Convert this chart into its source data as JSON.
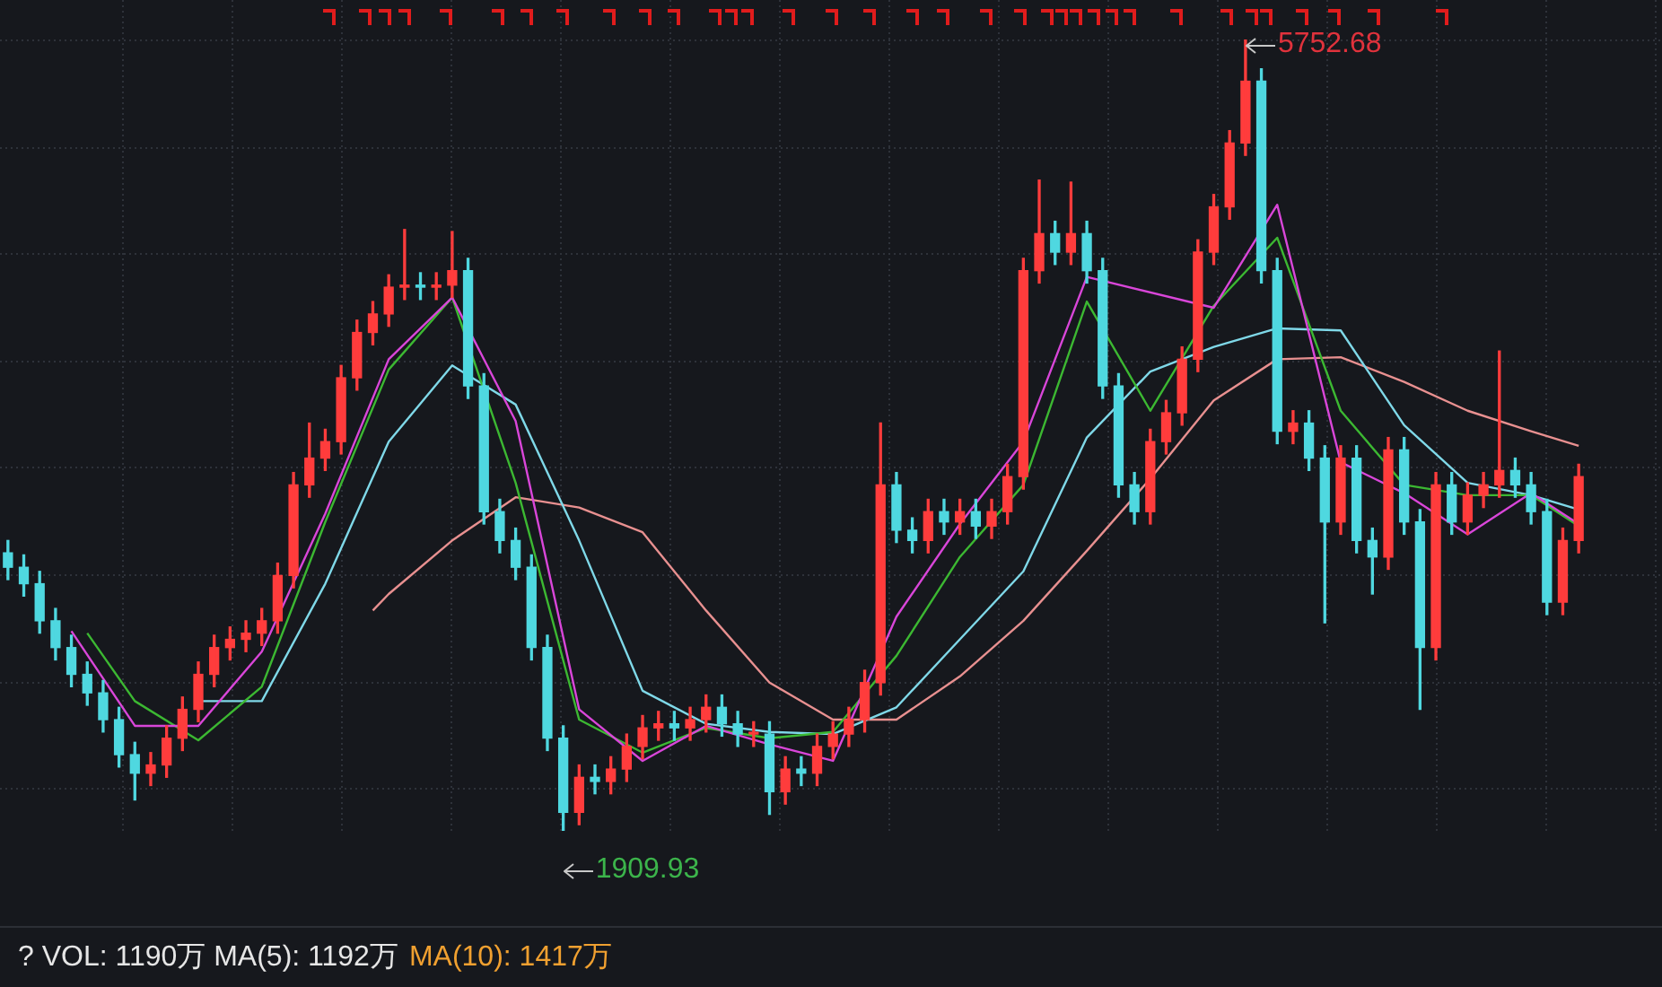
{
  "chart_data": {
    "type": "candlestick",
    "tick_labels": false,
    "grid": true,
    "legend": false,
    "categories": [
      null,
      null,
      null,
      null,
      null,
      null,
      null,
      null,
      null,
      null,
      null,
      null,
      null,
      null,
      null,
      null,
      null,
      null,
      null,
      null,
      null,
      null,
      null,
      null,
      null,
      null,
      null,
      null,
      null,
      null,
      null,
      null,
      null,
      null,
      null,
      null,
      null,
      null,
      null,
      null,
      null,
      null,
      null,
      null,
      null,
      null,
      null,
      null,
      null,
      null,
      null,
      null,
      null,
      null,
      null,
      null,
      null,
      null,
      null,
      null,
      null,
      null,
      null,
      null,
      null,
      null,
      null,
      null,
      null,
      null,
      null,
      null,
      null,
      null,
      null,
      null,
      null,
      null,
      null,
      null,
      null,
      null,
      null,
      null,
      null,
      null,
      null,
      null,
      null,
      null,
      null,
      null,
      null,
      null,
      null,
      null,
      null,
      null,
      null,
      null
    ],
    "annotations": [
      "5752.68",
      "1909.93",
      "? VOL: 1190万 MA(5): 1192万",
      "MA(10): 1417万"
    ],
    "series": [
      {
        "type": "line",
        "color": "#d946d9",
        "values": [
          null,
          null,
          null,
          null,
          2880,
          null,
          null,
          null,
          2420,
          null,
          null,
          null,
          2420,
          null,
          null,
          null,
          2780,
          null,
          null,
          null,
          3450,
          null,
          null,
          null,
          4200,
          null,
          null,
          null,
          4500,
          null,
          null,
          null,
          3900,
          null,
          null,
          null,
          2500,
          null,
          null,
          null,
          2250,
          null,
          null,
          null,
          2420,
          null,
          null,
          null,
          2330,
          null,
          null,
          null,
          2250,
          null,
          null,
          null,
          2950,
          null,
          null,
          null,
          3400,
          null,
          null,
          null,
          3800,
          null,
          null,
          null,
          4600,
          null,
          null,
          null,
          null,
          null,
          null,
          null,
          4450,
          null,
          null,
          null,
          4950,
          null,
          null,
          null,
          3700,
          null,
          null,
          null,
          3550,
          null,
          null,
          null,
          3350,
          null,
          null,
          null,
          3550,
          null,
          null,
          3400
        ]
      },
      {
        "type": "line",
        "color": "#3cb832",
        "values": [
          null,
          null,
          null,
          null,
          null,
          2870,
          null,
          null,
          2540,
          null,
          null,
          null,
          2350,
          null,
          null,
          null,
          2610,
          null,
          null,
          null,
          3410,
          null,
          null,
          null,
          4150,
          null,
          null,
          null,
          4500,
          null,
          null,
          null,
          3600,
          null,
          null,
          null,
          2450,
          null,
          null,
          null,
          2290,
          null,
          null,
          null,
          2410,
          null,
          null,
          null,
          2360,
          null,
          null,
          null,
          2390,
          null,
          null,
          null,
          2760,
          null,
          null,
          null,
          3240,
          null,
          null,
          null,
          3590,
          null,
          null,
          null,
          4480,
          null,
          null,
          null,
          3950,
          null,
          null,
          null,
          4460,
          null,
          null,
          null,
          4790,
          null,
          null,
          null,
          3950,
          null,
          null,
          null,
          3590,
          null,
          null,
          null,
          3540,
          null,
          null,
          null,
          3540,
          null,
          null,
          3390
        ]
      },
      {
        "type": "line",
        "color": "#7fd8e8",
        "values": [
          null,
          null,
          null,
          null,
          null,
          null,
          null,
          null,
          null,
          null,
          null,
          null,
          2540,
          null,
          null,
          null,
          2540,
          null,
          null,
          null,
          3110,
          null,
          null,
          null,
          3800,
          null,
          null,
          null,
          4170,
          null,
          null,
          null,
          3980,
          null,
          null,
          null,
          3320,
          null,
          null,
          null,
          2590,
          null,
          null,
          null,
          2430,
          null,
          null,
          null,
          2390,
          null,
          null,
          null,
          2380,
          null,
          null,
          null,
          2510,
          null,
          null,
          null,
          2840,
          null,
          null,
          null,
          3170,
          null,
          null,
          null,
          3820,
          null,
          null,
          null,
          4140,
          null,
          null,
          null,
          4260,
          null,
          null,
          null,
          4350,
          null,
          null,
          null,
          4340,
          null,
          null,
          null,
          3880,
          null,
          null,
          null,
          3600,
          null,
          null,
          null,
          3540,
          null,
          null,
          3470
        ]
      },
      {
        "type": "line",
        "color": "#e89090",
        "values": [
          null,
          null,
          null,
          null,
          null,
          null,
          null,
          null,
          null,
          null,
          null,
          null,
          null,
          null,
          null,
          null,
          null,
          null,
          null,
          null,
          null,
          null,
          null,
          2980,
          3060,
          null,
          null,
          null,
          3320,
          null,
          null,
          null,
          3530,
          null,
          null,
          null,
          3480,
          null,
          null,
          null,
          3360,
          null,
          null,
          null,
          2980,
          null,
          null,
          null,
          2630,
          null,
          null,
          null,
          2450,
          null,
          null,
          null,
          2450,
          null,
          null,
          null,
          2660,
          null,
          null,
          null,
          2930,
          null,
          null,
          null,
          3270,
          null,
          null,
          null,
          3620,
          null,
          null,
          null,
          4000,
          null,
          null,
          null,
          4200,
          null,
          null,
          null,
          4210,
          null,
          null,
          null,
          4090,
          null,
          null,
          null,
          3950,
          null,
          null,
          null,
          3850,
          null,
          null,
          3780
        ]
      },
      {
        "type": "candlestick",
        "colors": [
          "#4fd8e0",
          "#4fd8e0",
          "#4fd8e0",
          "#4fd8e0",
          "#4fd8e0",
          "#4fd8e0",
          "#4fd8e0",
          "#4fd8e0",
          "#4fd8e0",
          "#ff3c3c",
          "#ff3c3c",
          "#ff3c3c",
          "#ff3c3c",
          "#ff3c3c",
          "#ff3c3c",
          "#ff3c3c",
          "#ff3c3c",
          "#ff3c3c",
          "#ff3c3c",
          "#ff3c3c",
          "#ff3c3c",
          "#ff3c3c",
          "#ff3c3c",
          "#ff3c3c",
          "#ff3c3c",
          "#ff3c3c",
          "#4fd8e0",
          "#ff3c3c",
          "#ff3c3c",
          "#4fd8e0",
          "#4fd8e0",
          "#4fd8e0",
          "#4fd8e0",
          "#4fd8e0",
          "#4fd8e0",
          "#4fd8e0",
          "#ff3c3c",
          "#4fd8e0",
          "#ff3c3c",
          "#ff3c3c",
          "#ff3c3c",
          "#ff3c3c",
          "#4fd8e0",
          "#ff3c3c",
          "#ff3c3c",
          "#4fd8e0",
          "#4fd8e0",
          "#ff3c3c",
          "#4fd8e0",
          "#ff3c3c",
          "#4fd8e0",
          "#ff3c3c",
          "#ff3c3c",
          "#ff3c3c",
          "#ff3c3c",
          "#ff3c3c",
          "#4fd8e0",
          "#4fd8e0",
          "#ff3c3c",
          "#4fd8e0",
          "#ff3c3c",
          "#4fd8e0",
          "#ff3c3c",
          "#ff3c3c",
          "#ff3c3c",
          "#ff3c3c",
          "#4fd8e0",
          "#ff3c3c",
          "#4fd8e0",
          "#4fd8e0",
          "#4fd8e0",
          "#4fd8e0",
          "#ff3c3c",
          "#ff3c3c",
          "#ff3c3c",
          "#ff3c3c",
          "#ff3c3c",
          "#ff3c3c",
          "#ff3c3c",
          "#4fd8e0",
          "#4fd8e0",
          "#ff3c3c",
          "#4fd8e0",
          "#4fd8e0",
          "#ff3c3c",
          "#4fd8e0",
          "#4fd8e0",
          "#ff3c3c",
          "#4fd8e0",
          "#4fd8e0",
          "#ff3c3c",
          "#4fd8e0",
          "#ff3c3c",
          "#ff3c3c",
          "#ff3c3c",
          "#4fd8e0",
          "#4fd8e0",
          "#4fd8e0",
          "#ff3c3c",
          "#ff3c3c"
        ],
        "ohlc": [
          [
            3260,
            3320,
            3130,
            3190
          ],
          [
            3190,
            3250,
            3050,
            3110
          ],
          [
            3110,
            3170,
            2870,
            2930
          ],
          [
            2930,
            2990,
            2740,
            2800
          ],
          [
            2800,
            2860,
            2610,
            2670
          ],
          [
            2670,
            2730,
            2520,
            2580
          ],
          [
            2580,
            2640,
            2390,
            2450
          ],
          [
            2450,
            2510,
            2220,
            2280
          ],
          [
            2280,
            2340,
            2060,
            2190
          ],
          [
            2190,
            2290,
            2130,
            2230
          ],
          [
            2230,
            2420,
            2170,
            2360
          ],
          [
            2360,
            2560,
            2300,
            2500
          ],
          [
            2500,
            2730,
            2440,
            2670
          ],
          [
            2670,
            2860,
            2610,
            2800
          ],
          [
            2800,
            2900,
            2740,
            2840
          ],
          [
            2840,
            2930,
            2780,
            2870
          ],
          [
            2870,
            2990,
            2810,
            2930
          ],
          [
            2930,
            3210,
            2870,
            3150
          ],
          [
            3150,
            3650,
            3090,
            3590
          ],
          [
            3590,
            3890,
            3530,
            3720
          ],
          [
            3720,
            3860,
            3660,
            3800
          ],
          [
            3800,
            4170,
            3740,
            4110
          ],
          [
            4110,
            4390,
            4050,
            4330
          ],
          [
            4330,
            4480,
            4270,
            4420
          ],
          [
            4420,
            4610,
            4360,
            4550
          ],
          [
            4550,
            4830,
            4490,
            4560
          ],
          [
            4560,
            4620,
            4490,
            4550
          ],
          [
            4550,
            4620,
            4490,
            4560
          ],
          [
            4560,
            4820,
            4500,
            4630
          ],
          [
            4630,
            4690,
            4010,
            4070
          ],
          [
            4070,
            4130,
            3400,
            3460
          ],
          [
            3460,
            3520,
            3260,
            3320
          ],
          [
            3320,
            3380,
            3130,
            3190
          ],
          [
            3190,
            3250,
            2740,
            2800
          ],
          [
            2800,
            2860,
            2300,
            2360
          ],
          [
            2360,
            2420,
            1909.93,
            2000
          ],
          [
            2000,
            2230,
            1940,
            2170
          ],
          [
            2170,
            2230,
            2090,
            2150
          ],
          [
            2150,
            2270,
            2090,
            2210
          ],
          [
            2210,
            2380,
            2150,
            2320
          ],
          [
            2320,
            2470,
            2260,
            2410
          ],
          [
            2410,
            2490,
            2350,
            2430
          ],
          [
            2430,
            2490,
            2350,
            2410
          ],
          [
            2410,
            2510,
            2350,
            2450
          ],
          [
            2450,
            2570,
            2390,
            2510
          ],
          [
            2510,
            2570,
            2370,
            2430
          ],
          [
            2430,
            2490,
            2320,
            2380
          ],
          [
            2380,
            2440,
            2320,
            2380
          ],
          [
            2380,
            2440,
            1990,
            2100
          ],
          [
            2100,
            2270,
            2040,
            2210
          ],
          [
            2210,
            2270,
            2130,
            2190
          ],
          [
            2190,
            2380,
            2130,
            2320
          ],
          [
            2320,
            2440,
            2260,
            2380
          ],
          [
            2380,
            2510,
            2320,
            2450
          ],
          [
            2450,
            2690,
            2390,
            2630
          ],
          [
            2630,
            3890,
            2570,
            3590
          ],
          [
            3590,
            3650,
            3310,
            3370
          ],
          [
            3370,
            3430,
            3260,
            3320
          ],
          [
            3320,
            3520,
            3260,
            3460
          ],
          [
            3460,
            3520,
            3350,
            3410
          ],
          [
            3410,
            3520,
            3350,
            3460
          ],
          [
            3460,
            3520,
            3330,
            3390
          ],
          [
            3390,
            3520,
            3330,
            3460
          ],
          [
            3460,
            3690,
            3400,
            3630
          ],
          [
            3630,
            4690,
            3570,
            4630
          ],
          [
            4630,
            5070,
            4570,
            4810
          ],
          [
            4810,
            4870,
            4660,
            4720
          ],
          [
            4720,
            5060,
            4660,
            4810
          ],
          [
            4810,
            4870,
            4570,
            4630
          ],
          [
            4630,
            4690,
            4010,
            4070
          ],
          [
            4070,
            4130,
            3530,
            3590
          ],
          [
            3590,
            3650,
            3400,
            3460
          ],
          [
            3460,
            3860,
            3400,
            3800
          ],
          [
            3800,
            4000,
            3740,
            3940
          ],
          [
            3940,
            4260,
            3880,
            4200
          ],
          [
            4200,
            4780,
            4140,
            4720
          ],
          [
            4720,
            5000,
            4660,
            4940
          ],
          [
            4940,
            5310,
            4880,
            5250
          ],
          [
            5250,
            5752.68,
            5190,
            5550
          ],
          [
            5550,
            5610,
            4570,
            4630
          ],
          [
            4630,
            4690,
            3790,
            3850
          ],
          [
            3850,
            3950,
            3790,
            3890
          ],
          [
            3890,
            3950,
            3660,
            3720
          ],
          [
            3720,
            3780,
            2920,
            3410
          ],
          [
            3410,
            3780,
            3350,
            3720
          ],
          [
            3720,
            3780,
            3260,
            3320
          ],
          [
            3320,
            3380,
            3060,
            3240
          ],
          [
            3240,
            3820,
            3180,
            3760
          ],
          [
            3760,
            3820,
            3350,
            3410
          ],
          [
            3410,
            3470,
            2500,
            2800
          ],
          [
            2800,
            3650,
            2740,
            3590
          ],
          [
            3590,
            3650,
            3350,
            3410
          ],
          [
            3410,
            3600,
            3350,
            3540
          ],
          [
            3540,
            3650,
            3480,
            3590
          ],
          [
            3590,
            4240,
            3530,
            3660
          ],
          [
            3660,
            3720,
            3530,
            3590
          ],
          [
            3590,
            3650,
            3400,
            3460
          ],
          [
            3460,
            3520,
            2960,
            3020
          ],
          [
            3020,
            3380,
            2960,
            3320
          ],
          [
            3320,
            3690,
            3260,
            3630
          ]
        ]
      }
    ]
  }
}
